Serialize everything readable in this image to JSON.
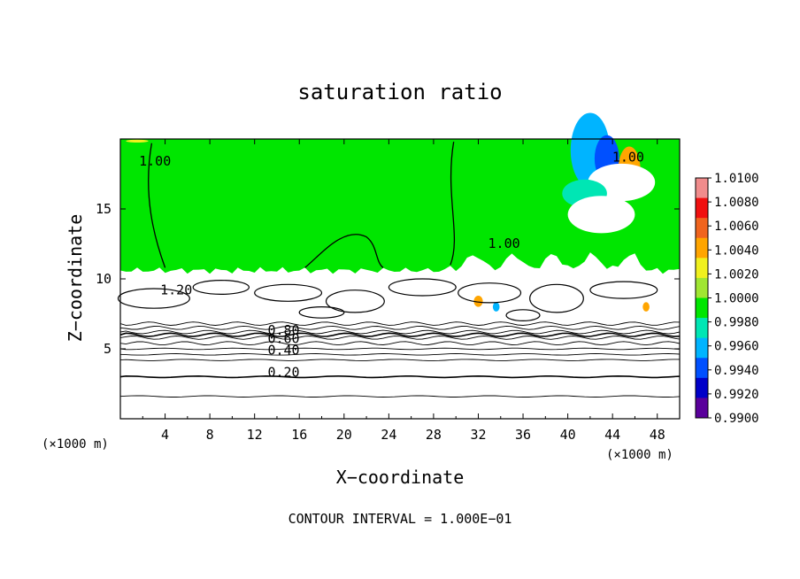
{
  "chart_data": {
    "type": "heatmap",
    "title": "saturation ratio",
    "xlabel": "X−coordinate",
    "ylabel": "Z−coordinate",
    "x_unit": "(×1000 m)",
    "y_unit": "(×1000 m)",
    "xlim": [
      0,
      50
    ],
    "ylim": [
      0,
      20
    ],
    "x_ticks": [
      4,
      8,
      12,
      16,
      20,
      24,
      28,
      32,
      36,
      40,
      44,
      48
    ],
    "y_ticks": [
      5,
      10,
      15
    ],
    "footer": "CONTOUR INTERVAL = 1.000E−01",
    "colorbar": {
      "levels": [
        "1.0100",
        "1.0080",
        "1.0060",
        "1.0040",
        "1.0020",
        "1.0000",
        "0.9980",
        "0.9960",
        "0.9940",
        "0.9920",
        "0.9900"
      ],
      "colors": [
        "#f08c8c",
        "#f01010",
        "#f0641e",
        "#ffa500",
        "#f0f01e",
        "#a0e632",
        "#00e600",
        "#00e6b4",
        "#00b4ff",
        "#0050ff",
        "#0000c8",
        "#5a009b"
      ]
    },
    "contour_interval": 0.1,
    "contour_labels": [
      {
        "text": "0.20",
        "x": 14.6,
        "z": 3.0
      },
      {
        "text": "0.40",
        "x": 14.6,
        "z": 4.6
      },
      {
        "text": "0.60",
        "x": 14.6,
        "z": 5.4
      },
      {
        "text": "0.80",
        "x": 14.6,
        "z": 6.0
      },
      {
        "text": "1.20",
        "x": 5.0,
        "z": 8.9
      },
      {
        "text": "1.00",
        "x": 3.1,
        "z": 18.1
      },
      {
        "text": "1.00",
        "x": 34.3,
        "z": 12.2
      },
      {
        "text": "1.00",
        "x": 45.4,
        "z": 18.4
      }
    ],
    "saturated_layer_top_z": 10.6,
    "colors": {
      "saturated_fill": "#00e600",
      "contour": "#000000",
      "background": "#ffffff"
    }
  }
}
